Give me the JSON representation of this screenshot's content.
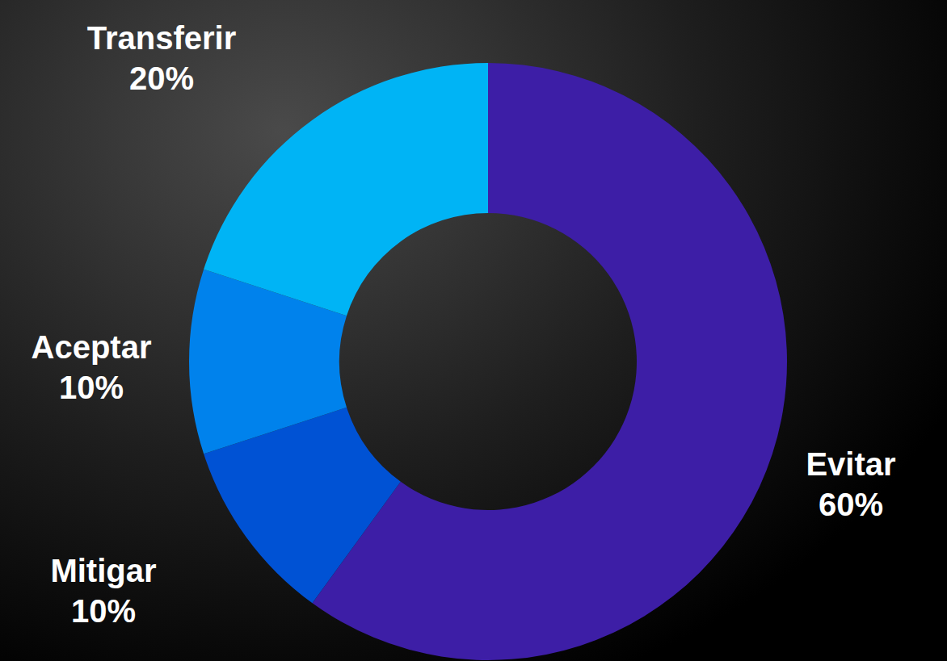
{
  "chart_data": {
    "type": "pie",
    "categories": [
      "Evitar",
      "Mitigar",
      "Aceptar",
      "Transferir"
    ],
    "values": [
      60,
      10,
      10,
      20
    ],
    "value_labels": [
      "60%",
      "10%",
      "10%",
      "20%"
    ],
    "colors": [
      "#3d1ea6",
      "#0052d4",
      "#0082ec",
      "#00b4f5"
    ],
    "data_labels": true
  }
}
